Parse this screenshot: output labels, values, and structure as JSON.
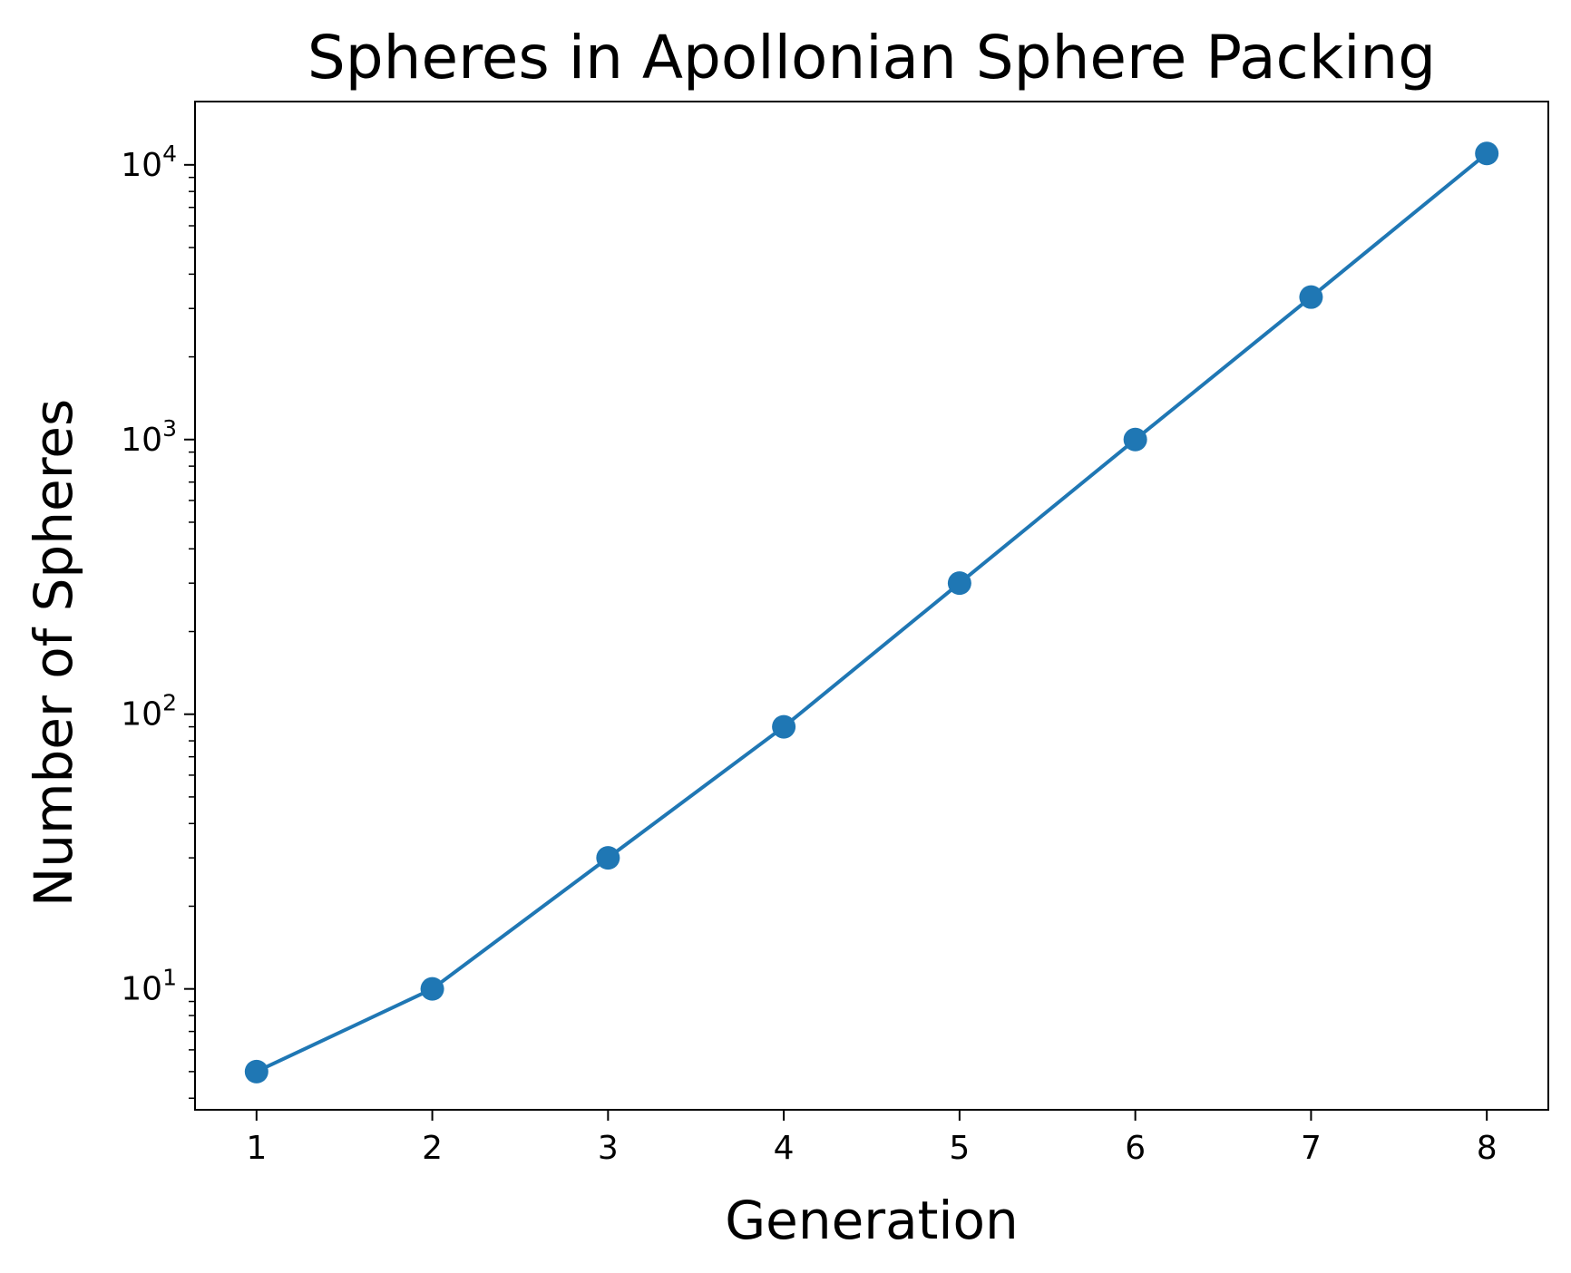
{
  "chart_data": {
    "type": "line",
    "title": "Spheres in Apollonian Sphere Packing",
    "xlabel": "Generation",
    "ylabel": "Number of Spheres",
    "yscale": "log",
    "x": [
      1,
      2,
      3,
      4,
      5,
      6,
      7,
      8
    ],
    "series": [
      {
        "values": [
          5,
          10,
          30,
          90,
          300,
          1000,
          3300,
          11000
        ],
        "color": "#1f77b4",
        "marker": "circle"
      }
    ],
    "xticks": [
      "1",
      "2",
      "3",
      "4",
      "5",
      "6",
      "7",
      "8"
    ],
    "yticks": [
      {
        "base": "10",
        "exp": "1",
        "value": 10
      },
      {
        "base": "10",
        "exp": "2",
        "value": 100
      },
      {
        "base": "10",
        "exp": "3",
        "value": 1000
      },
      {
        "base": "10",
        "exp": "4",
        "value": 10000
      }
    ],
    "xlim": [
      0.65,
      8.35
    ],
    "ylim": [
      3.63,
      17000
    ],
    "grid": false,
    "legend": "none"
  }
}
